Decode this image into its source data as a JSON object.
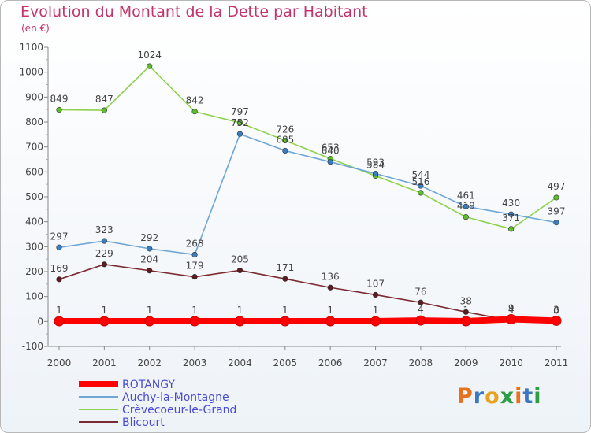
{
  "header": {
    "title": "Evolution du Montant de la Dette par Habitant",
    "subtitle": "(en €)"
  },
  "logo": {
    "text": "Proxiti",
    "colors": [
      "#e8711c",
      "#3a78c4",
      "#e8a31c",
      "#2e9d48",
      "#e8711c",
      "#3a78c4",
      "#2e9d48"
    ]
  },
  "chart_data": {
    "type": "line",
    "x": [
      "2000",
      "2001",
      "2002",
      "2003",
      "2004",
      "2005",
      "2006",
      "2007",
      "2008",
      "2009",
      "2010",
      "2011"
    ],
    "ylim": [
      -100,
      1100
    ],
    "yticks": [
      -100,
      0,
      100,
      200,
      300,
      400,
      500,
      600,
      700,
      800,
      900,
      1000,
      1100
    ],
    "grid": false,
    "legend_position": "bottom-left",
    "series": [
      {
        "name": "Crèvecoeur-le-Grand",
        "color": "#8fd14f",
        "marker": "#5cbf2a",
        "values": [
          849,
          847,
          1024,
          842,
          797,
          726,
          653,
          584,
          516,
          419,
          371,
          497
        ]
      },
      {
        "name": "Auchy-la-Montagne",
        "color": "#6fa6d6",
        "marker": "#3a7ec1",
        "values": [
          297,
          323,
          292,
          268,
          752,
          685,
          640,
          593,
          544,
          461,
          430,
          397
        ]
      },
      {
        "name": "Blicourt",
        "color": "#7a2a30",
        "marker": "#5a1c20",
        "values": [
          169,
          229,
          204,
          179,
          205,
          171,
          136,
          107,
          76,
          38,
          4,
          0
        ]
      },
      {
        "name": "ROTANGY",
        "color": "#ff0000",
        "marker": "#ff0000",
        "values": [
          1,
          1,
          1,
          1,
          1,
          1,
          1,
          1,
          4,
          1,
          9,
          3
        ]
      }
    ],
    "legend_order": [
      "ROTANGY",
      "Auchy-la-Montagne",
      "Crèvecoeur-le-Grand",
      "Blicourt"
    ]
  }
}
